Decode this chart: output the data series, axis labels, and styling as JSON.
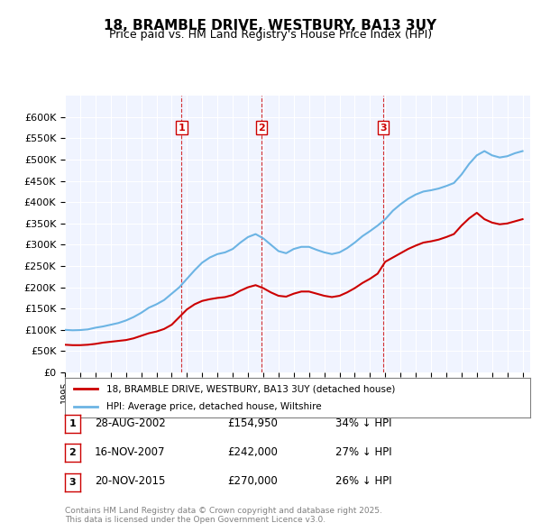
{
  "title": "18, BRAMBLE DRIVE, WESTBURY, BA13 3UY",
  "subtitle": "Price paid vs. HM Land Registry's House Price Index (HPI)",
  "hpi_color": "#6cb4e4",
  "price_color": "#cc0000",
  "vline_color": "#cc0000",
  "background_color": "#f0f4ff",
  "ylim": [
    0,
    650000
  ],
  "yticks": [
    0,
    50000,
    100000,
    150000,
    200000,
    250000,
    300000,
    350000,
    400000,
    450000,
    500000,
    550000,
    600000
  ],
  "legend_label_price": "18, BRAMBLE DRIVE, WESTBURY, BA13 3UY (detached house)",
  "legend_label_hpi": "HPI: Average price, detached house, Wiltshire",
  "transactions": [
    {
      "label": "1",
      "date": "28-AUG-2002",
      "price": 154950,
      "note": "34% ↓ HPI",
      "x": 2002.65
    },
    {
      "label": "2",
      "date": "16-NOV-2007",
      "price": 242000,
      "note": "27% ↓ HPI",
      "x": 2007.88
    },
    {
      "label": "3",
      "date": "20-NOV-2015",
      "price": 270000,
      "note": "26% ↓ HPI",
      "x": 2015.88
    }
  ],
  "footnote": "Contains HM Land Registry data © Crown copyright and database right 2025.\nThis data is licensed under the Open Government Licence v3.0.",
  "hpi_data_x": [
    1995,
    1995.5,
    1996,
    1996.5,
    1997,
    1997.5,
    1998,
    1998.5,
    1999,
    1999.5,
    2000,
    2000.5,
    2001,
    2001.5,
    2002,
    2002.5,
    2003,
    2003.5,
    2004,
    2004.5,
    2005,
    2005.5,
    2006,
    2006.5,
    2007,
    2007.5,
    2008,
    2008.5,
    2009,
    2009.5,
    2010,
    2010.5,
    2011,
    2011.5,
    2012,
    2012.5,
    2013,
    2013.5,
    2014,
    2014.5,
    2015,
    2015.5,
    2016,
    2016.5,
    2017,
    2017.5,
    2018,
    2018.5,
    2019,
    2019.5,
    2020,
    2020.5,
    2021,
    2021.5,
    2022,
    2022.5,
    2023,
    2023.5,
    2024,
    2024.5,
    2025
  ],
  "hpi_data_y": [
    100000,
    99000,
    99500,
    101000,
    105000,
    108000,
    112000,
    116000,
    122000,
    130000,
    140000,
    152000,
    160000,
    170000,
    185000,
    200000,
    220000,
    240000,
    258000,
    270000,
    278000,
    282000,
    290000,
    305000,
    318000,
    325000,
    315000,
    300000,
    285000,
    280000,
    290000,
    295000,
    295000,
    288000,
    282000,
    278000,
    282000,
    292000,
    305000,
    320000,
    332000,
    345000,
    360000,
    380000,
    395000,
    408000,
    418000,
    425000,
    428000,
    432000,
    438000,
    445000,
    465000,
    490000,
    510000,
    520000,
    510000,
    505000,
    508000,
    515000,
    520000
  ],
  "price_data_x": [
    1995,
    1995.5,
    1996,
    1996.5,
    1997,
    1997.5,
    1998,
    1998.5,
    1999,
    1999.5,
    2000,
    2000.5,
    2001,
    2001.5,
    2002,
    2002.5,
    2003,
    2003.5,
    2004,
    2004.5,
    2005,
    2005.5,
    2006,
    2006.5,
    2007,
    2007.5,
    2008,
    2008.5,
    2009,
    2009.5,
    2010,
    2010.5,
    2011,
    2011.5,
    2012,
    2012.5,
    2013,
    2013.5,
    2014,
    2014.5,
    2015,
    2015.5,
    2016,
    2016.5,
    2017,
    2017.5,
    2018,
    2018.5,
    2019,
    2019.5,
    2020,
    2020.5,
    2021,
    2021.5,
    2022,
    2022.5,
    2023,
    2023.5,
    2024,
    2024.5,
    2025
  ],
  "price_data_y": [
    65000,
    64000,
    64000,
    65000,
    67000,
    70000,
    72000,
    74000,
    76000,
    80000,
    86000,
    92000,
    96000,
    102000,
    112000,
    130000,
    148000,
    160000,
    168000,
    172000,
    175000,
    177000,
    182000,
    192000,
    200000,
    205000,
    198000,
    188000,
    180000,
    178000,
    185000,
    190000,
    190000,
    185000,
    180000,
    177000,
    180000,
    188000,
    198000,
    210000,
    220000,
    232000,
    260000,
    270000,
    280000,
    290000,
    298000,
    305000,
    308000,
    312000,
    318000,
    325000,
    345000,
    362000,
    375000,
    360000,
    352000,
    348000,
    350000,
    355000,
    360000
  ]
}
